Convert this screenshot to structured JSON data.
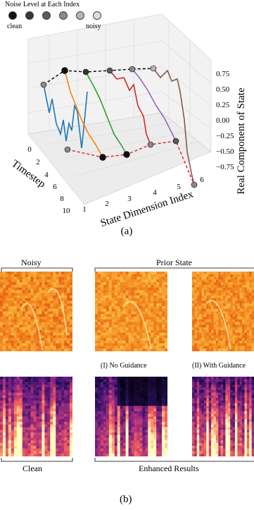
{
  "legend": {
    "title": "Noise Level at Each Index",
    "left_label": "clean",
    "right_label": "noisy",
    "dot_colors": [
      "#111111",
      "#2e3a2e",
      "#5b5b5b",
      "#8a8a8a",
      "#b5b5b5",
      "#dcdcdc"
    ]
  },
  "panel_a": {
    "x_axis_label": "State Dimension Index",
    "x_ticks": [
      "1",
      "2",
      "3",
      "4",
      "5",
      "6"
    ],
    "t_axis_label": "Timestep",
    "t_ticks": [
      "0",
      "2",
      "4",
      "6",
      "8",
      "10"
    ],
    "z_axis_label": "Real Component of State",
    "z_ticks": [
      "0.75",
      "0.50",
      "0.25",
      "0.00",
      "−0.25",
      "−0.50",
      "−0.75"
    ],
    "caption": "(a)",
    "series_colors": [
      "#1f77b4",
      "#ff7f0e",
      "#2ca02c",
      "#d62728",
      "#9467bd",
      "#8c564b"
    ]
  },
  "panel_b": {
    "noisy_label": "Noisy",
    "prior_label": "Prior State",
    "no_guidance_label": "(I) No Guidance",
    "with_guidance_label": "(II) With Guidance",
    "clean_label": "Clean",
    "enhanced_label": "Enhanced Results",
    "caption": "(b)"
  }
}
